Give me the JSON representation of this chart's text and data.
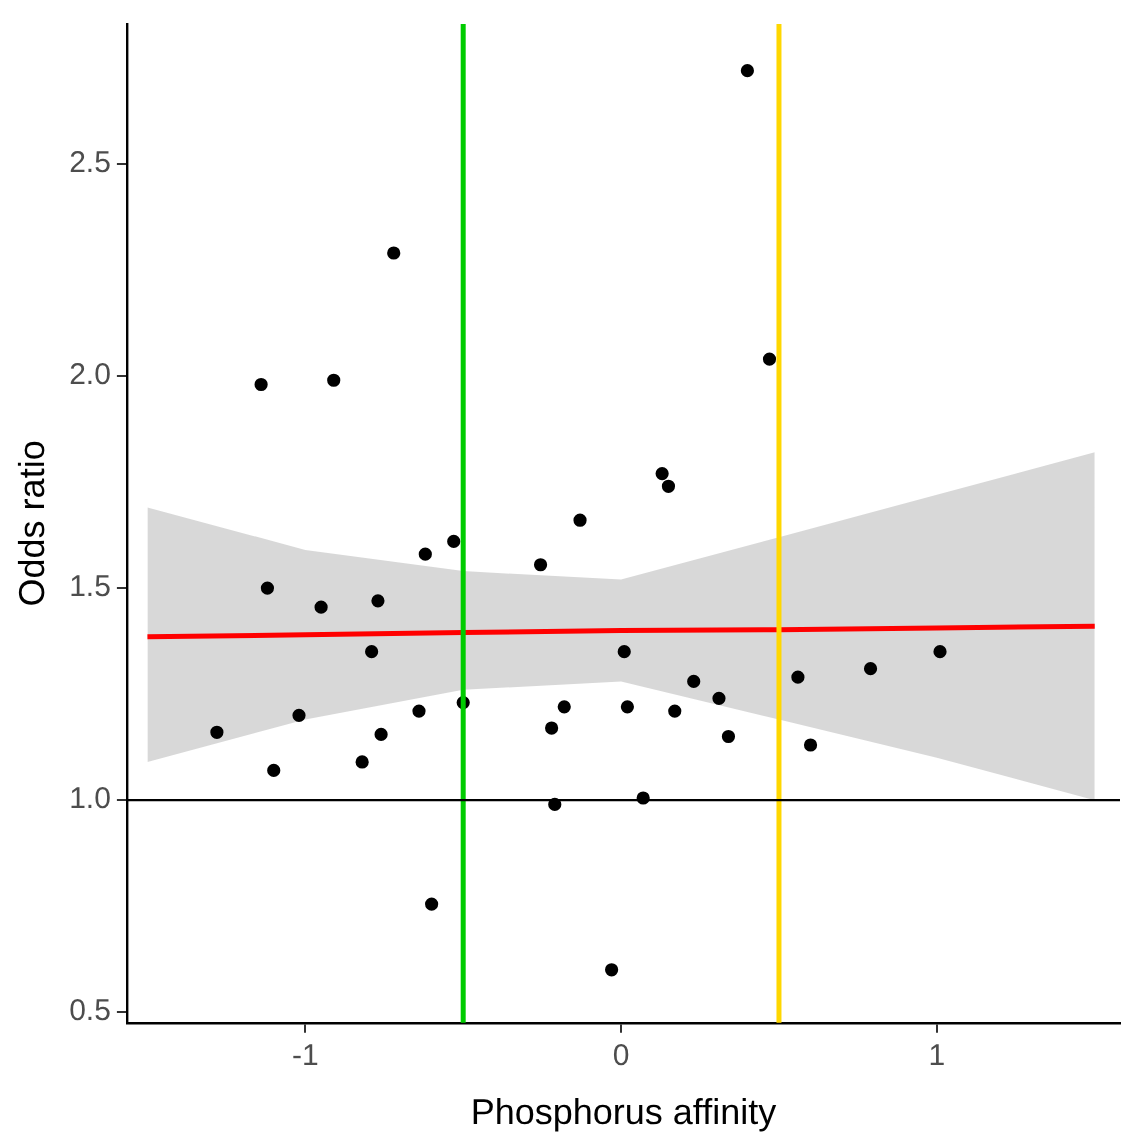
{
  "chart_data": {
    "type": "scatter",
    "xlabel": "Phosphorus affinity",
    "ylabel": "Odds ratio",
    "xlim": [
      -1.565,
      1.58
    ],
    "ylim": [
      0.475,
      2.83
    ],
    "xticks": [
      -1,
      0,
      1
    ],
    "yticks": [
      0.5,
      {
        "value": 1,
        "label": "1.0"
      },
      1.5,
      {
        "value": 2,
        "label": "2.0"
      },
      2.5
    ],
    "grid": false,
    "legend": false,
    "series": [
      {
        "type": "line",
        "color": "#ff0000",
        "x": [
          -1.5,
          -1,
          -0.5,
          0,
          0.5,
          1,
          1.5
        ],
        "values": [
          1.385,
          1.39,
          1.395,
          1.4,
          1.402,
          1.406,
          1.41
        ],
        "lower": [
          1.09,
          1.19,
          1.26,
          1.28,
          1.19,
          1.1,
          1.0
        ],
        "upper": [
          1.69,
          1.59,
          1.54,
          1.52,
          1.62,
          1.72,
          1.82
        ]
      },
      {
        "marker": "circle",
        "color": "#000000",
        "x": [
          -1.28,
          -1.12,
          -1.14,
          -1.1,
          -1.02,
          -0.95,
          -0.91,
          -0.82,
          -0.79,
          -0.77,
          -0.76,
          -0.72,
          -0.64,
          -0.62,
          -0.6,
          -0.53,
          -0.5,
          -0.255,
          -0.22,
          -0.21,
          -0.18,
          -0.13,
          -0.03,
          0.01,
          0.02,
          0.07,
          0.13,
          0.15,
          0.17,
          0.23,
          0.31,
          0.34,
          0.4,
          0.47,
          0.56,
          0.6,
          0.79,
          1.01
        ],
        "values": [
          1.16,
          1.5,
          1.98,
          1.07,
          1.2,
          1.455,
          1.99,
          1.09,
          1.35,
          1.47,
          1.155,
          2.29,
          1.21,
          1.58,
          0.755,
          1.61,
          1.23,
          1.555,
          1.17,
          0.99,
          1.22,
          1.66,
          0.6,
          1.35,
          1.22,
          1.005,
          1.77,
          1.74,
          1.21,
          1.28,
          1.24,
          1.15,
          2.72,
          2.04,
          1.29,
          1.13,
          1.31,
          1.35
        ]
      }
    ],
    "ref_lines": [
      {
        "axis": "x",
        "value": -0.5,
        "color": "#00cc00"
      },
      {
        "axis": "x",
        "value": 0.5,
        "color": "#ffd700"
      },
      {
        "axis": "y",
        "value": 1.0,
        "color": "#000000"
      }
    ]
  }
}
